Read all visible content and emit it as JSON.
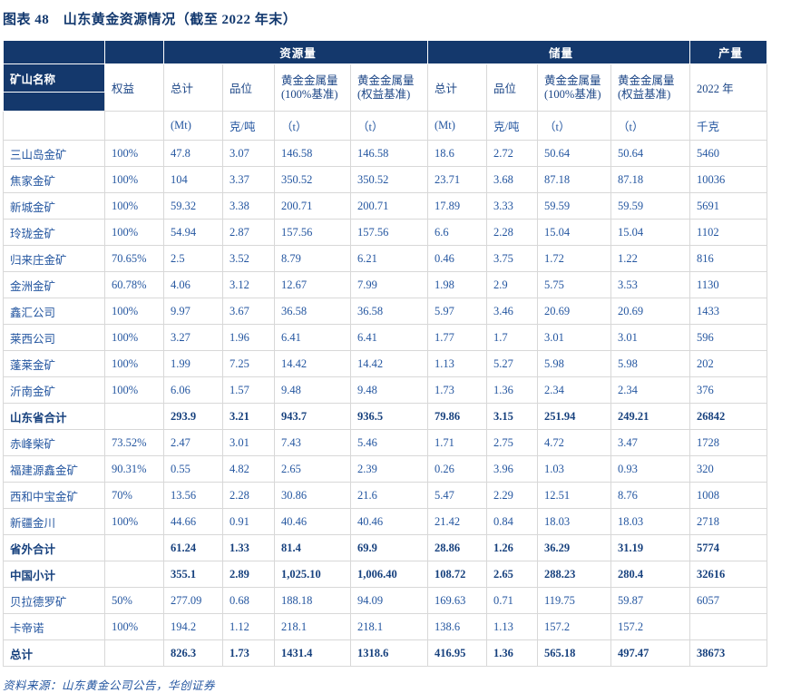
{
  "title": "图表 48　山东黄金资源情况（截至 2022 年末）",
  "source_note": "资料来源：山东黄金公司公告，华创证券",
  "colors": {
    "header_bg": "#14386C",
    "header_fg": "#FFFFFF",
    "ink": "#2456A0",
    "ink_strong": "#17417E",
    "head_ink": "#1B4586",
    "title_ink": "#12386E",
    "grid": "#D8D8D8"
  },
  "table": {
    "corner_label": "矿山名称",
    "groups": {
      "resources": "资源量",
      "reserves": "储量",
      "production": "产量"
    },
    "columns": {
      "equity": "权益",
      "total": "总计",
      "grade": "品位",
      "metal_label": "黄金金属量",
      "basis_100": "(100%基准)",
      "basis_equity": "(权益基准)",
      "production_year": "2022 年"
    },
    "units": {
      "mt": "(Mt)",
      "grade": "克/吨",
      "t": "（t）",
      "kg": "千克"
    },
    "column_keys": [
      "mine-name",
      "equity",
      "res-total",
      "res-grade",
      "res-metal-100",
      "res-metal-equity",
      "rsv-total",
      "rsv-grade",
      "rsv-metal-100",
      "rsv-metal-equity",
      "production-2022"
    ],
    "rows": [
      {
        "name": "三山岛金矿",
        "equity": "100%",
        "bold": false,
        "values": [
          "47.8",
          "3.07",
          "146.58",
          "146.58",
          "18.6",
          "2.72",
          "50.64",
          "50.64",
          "5460"
        ]
      },
      {
        "name": "焦家金矿",
        "equity": "100%",
        "bold": false,
        "values": [
          "104",
          "3.37",
          "350.52",
          "350.52",
          "23.71",
          "3.68",
          "87.18",
          "87.18",
          "10036"
        ]
      },
      {
        "name": "新城金矿",
        "equity": "100%",
        "bold": false,
        "values": [
          "59.32",
          "3.38",
          "200.71",
          "200.71",
          "17.89",
          "3.33",
          "59.59",
          "59.59",
          "5691"
        ]
      },
      {
        "name": "玲珑金矿",
        "equity": "100%",
        "bold": false,
        "values": [
          "54.94",
          "2.87",
          "157.56",
          "157.56",
          "6.6",
          "2.28",
          "15.04",
          "15.04",
          "1102"
        ]
      },
      {
        "name": "归来庄金矿",
        "equity": "70.65%",
        "bold": false,
        "values": [
          "2.5",
          "3.52",
          "8.79",
          "6.21",
          "0.46",
          "3.75",
          "1.72",
          "1.22",
          "816"
        ]
      },
      {
        "name": "金洲金矿",
        "equity": "60.78%",
        "bold": false,
        "values": [
          "4.06",
          "3.12",
          "12.67",
          "7.99",
          "1.98",
          "2.9",
          "5.75",
          "3.53",
          "1130"
        ]
      },
      {
        "name": "鑫汇公司",
        "equity": "100%",
        "bold": false,
        "values": [
          "9.97",
          "3.67",
          "36.58",
          "36.58",
          "5.97",
          "3.46",
          "20.69",
          "20.69",
          "1433"
        ]
      },
      {
        "name": "莱西公司",
        "equity": "100%",
        "bold": false,
        "values": [
          "3.27",
          "1.96",
          "6.41",
          "6.41",
          "1.77",
          "1.7",
          "3.01",
          "3.01",
          "596"
        ]
      },
      {
        "name": "蓬莱金矿",
        "equity": "100%",
        "bold": false,
        "values": [
          "1.99",
          "7.25",
          "14.42",
          "14.42",
          "1.13",
          "5.27",
          "5.98",
          "5.98",
          "202"
        ]
      },
      {
        "name": "沂南金矿",
        "equity": "100%",
        "bold": false,
        "values": [
          "6.06",
          "1.57",
          "9.48",
          "9.48",
          "1.73",
          "1.36",
          "2.34",
          "2.34",
          "376"
        ]
      },
      {
        "name": "山东省合计",
        "equity": "",
        "bold": true,
        "values": [
          "293.9",
          "3.21",
          "943.7",
          "936.5",
          "79.86",
          "3.15",
          "251.94",
          "249.21",
          "26842"
        ]
      },
      {
        "name": "赤峰柴矿",
        "equity": "73.52%",
        "bold": false,
        "values": [
          "2.47",
          "3.01",
          "7.43",
          "5.46",
          "1.71",
          "2.75",
          "4.72",
          "3.47",
          "1728"
        ]
      },
      {
        "name": "福建源鑫金矿",
        "equity": "90.31%",
        "bold": false,
        "values": [
          "0.55",
          "4.82",
          "2.65",
          "2.39",
          "0.26",
          "3.96",
          "1.03",
          "0.93",
          "320"
        ]
      },
      {
        "name": "西和中宝金矿",
        "equity": "70%",
        "bold": false,
        "values": [
          "13.56",
          "2.28",
          "30.86",
          "21.6",
          "5.47",
          "2.29",
          "12.51",
          "8.76",
          "1008"
        ]
      },
      {
        "name": "新疆金川",
        "equity": "100%",
        "bold": false,
        "values": [
          "44.66",
          "0.91",
          "40.46",
          "40.46",
          "21.42",
          "0.84",
          "18.03",
          "18.03",
          "2718"
        ]
      },
      {
        "name": "省外合计",
        "equity": "",
        "bold": true,
        "values": [
          "61.24",
          "1.33",
          "81.4",
          "69.9",
          "28.86",
          "1.26",
          "36.29",
          "31.19",
          "5774"
        ]
      },
      {
        "name": "中国小计",
        "equity": "",
        "bold": true,
        "values": [
          "355.1",
          "2.89",
          "1,025.10",
          "1,006.40",
          "108.72",
          "2.65",
          "288.23",
          "280.4",
          "32616"
        ]
      },
      {
        "name": "贝拉德罗矿",
        "equity": "50%",
        "bold": false,
        "values": [
          "277.09",
          "0.68",
          "188.18",
          "94.09",
          "169.63",
          "0.71",
          "119.75",
          "59.87",
          "6057"
        ]
      },
      {
        "name": "卡帝诺",
        "equity": "100%",
        "bold": false,
        "values": [
          "194.2",
          "1.12",
          "218.1",
          "218.1",
          "138.6",
          "1.13",
          "157.2",
          "157.2",
          ""
        ]
      },
      {
        "name": "总计",
        "equity": "",
        "bold": true,
        "values": [
          "826.3",
          "1.73",
          "1431.4",
          "1318.6",
          "416.95",
          "1.36",
          "565.18",
          "497.47",
          "38673"
        ]
      }
    ]
  }
}
